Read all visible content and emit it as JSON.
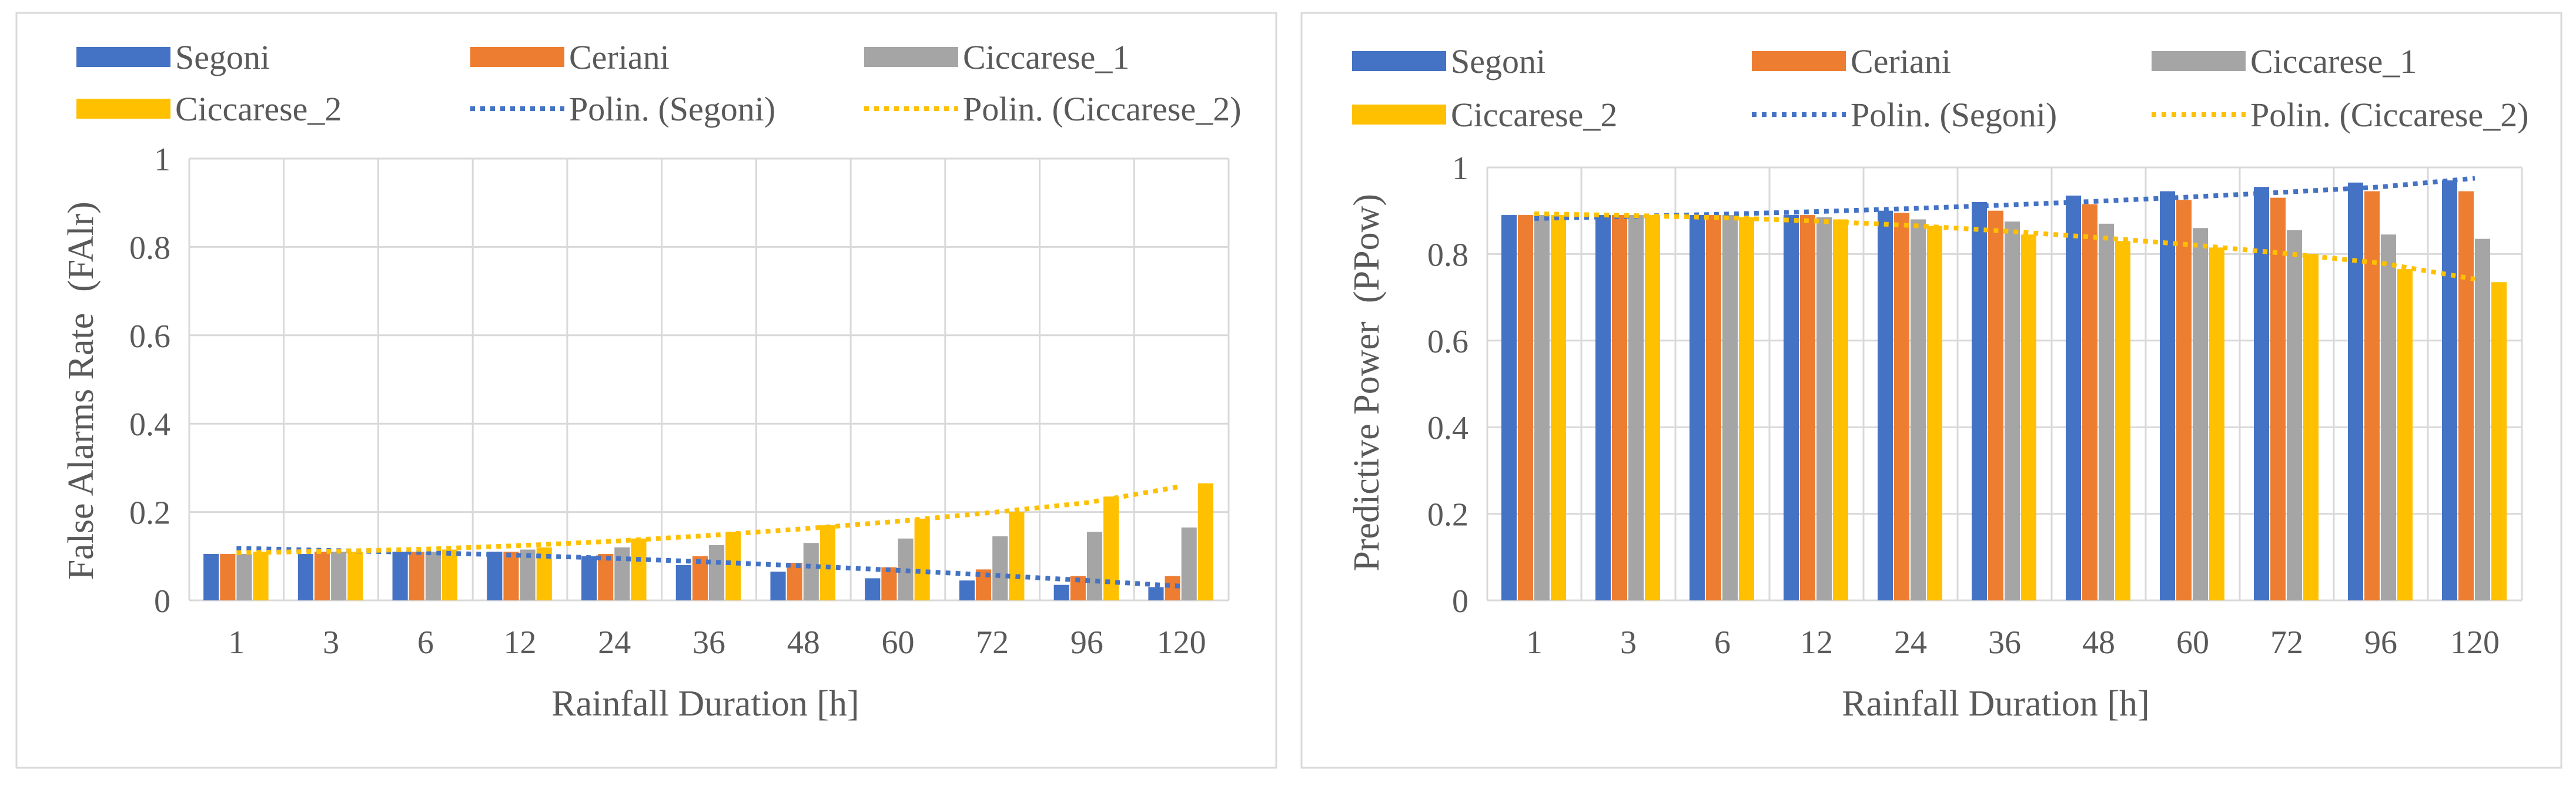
{
  "chart_data": [
    {
      "type": "bar",
      "xlabel": "Rainfall Duration [h]",
      "ylabel": "False Alarms Rate",
      "ylabel_abbrev": "(FAlr)",
      "ylim": [
        0,
        1
      ],
      "yticks": [
        0,
        0.2,
        0.4,
        0.6,
        0.8,
        1
      ],
      "ytick_labels": [
        "0",
        "0.2",
        "0.4",
        "0.6",
        "0.8",
        "1"
      ],
      "grid": true,
      "legend_position": "top",
      "categories": [
        "1",
        "3",
        "6",
        "12",
        "24",
        "36",
        "48",
        "60",
        "72",
        "96",
        "120"
      ],
      "series": [
        {
          "name": "Segoni",
          "color": "#4472C4",
          "values": [
            0.105,
            0.105,
            0.11,
            0.11,
            0.1,
            0.08,
            0.065,
            0.05,
            0.045,
            0.035,
            0.03
          ]
        },
        {
          "name": "Ceriani",
          "color": "#ED7D31",
          "values": [
            0.105,
            0.11,
            0.11,
            0.11,
            0.105,
            0.1,
            0.085,
            0.075,
            0.07,
            0.055,
            0.055
          ]
        },
        {
          "name": "Ciccarese_1",
          "color": "#A5A5A5",
          "values": [
            0.105,
            0.11,
            0.11,
            0.115,
            0.12,
            0.125,
            0.13,
            0.14,
            0.145,
            0.155,
            0.165
          ]
        },
        {
          "name": "Ciccarese_2",
          "color": "#FFC000",
          "values": [
            0.11,
            0.11,
            0.115,
            0.12,
            0.14,
            0.155,
            0.17,
            0.185,
            0.2,
            0.235,
            0.265
          ]
        }
      ],
      "trendlines": [
        {
          "name": "Polin. (Segoni)",
          "color": "#4472C4",
          "values": [
            0.118,
            0.113,
            0.108,
            0.102,
            0.095,
            0.087,
            0.078,
            0.068,
            0.057,
            0.045,
            0.032
          ]
        },
        {
          "name": "Polin. (Ciccarese_2)",
          "color": "#FFC000",
          "values": [
            0.108,
            0.111,
            0.116,
            0.124,
            0.134,
            0.147,
            0.162,
            0.179,
            0.199,
            0.221,
            0.258
          ]
        }
      ]
    },
    {
      "type": "bar",
      "xlabel": "Rainfall Duration [h]",
      "ylabel": "Predictive Power",
      "ylabel_abbrev": "(PPow)",
      "ylim": [
        0,
        1
      ],
      "yticks": [
        0,
        0.2,
        0.4,
        0.6,
        0.8,
        1
      ],
      "ytick_labels": [
        "0",
        "0.2",
        "0.4",
        "0.6",
        "0.8",
        "1"
      ],
      "grid": true,
      "legend_position": "top",
      "categories": [
        "1",
        "3",
        "6",
        "12",
        "24",
        "36",
        "48",
        "60",
        "72",
        "96",
        "120"
      ],
      "series": [
        {
          "name": "Segoni",
          "color": "#4472C4",
          "values": [
            0.89,
            0.89,
            0.89,
            0.89,
            0.9,
            0.92,
            0.935,
            0.945,
            0.955,
            0.965,
            0.97
          ]
        },
        {
          "name": "Ceriani",
          "color": "#ED7D31",
          "values": [
            0.89,
            0.89,
            0.89,
            0.89,
            0.895,
            0.9,
            0.915,
            0.925,
            0.93,
            0.945,
            0.945
          ]
        },
        {
          "name": "Ciccarese_1",
          "color": "#A5A5A5",
          "values": [
            0.89,
            0.89,
            0.89,
            0.885,
            0.88,
            0.875,
            0.87,
            0.86,
            0.855,
            0.845,
            0.835
          ]
        },
        {
          "name": "Ciccarese_2",
          "color": "#FFC000",
          "values": [
            0.89,
            0.89,
            0.885,
            0.88,
            0.865,
            0.845,
            0.83,
            0.815,
            0.8,
            0.765,
            0.735
          ]
        }
      ],
      "trendlines": [
        {
          "name": "Polin. (Segoni)",
          "color": "#4472C4",
          "values": [
            0.882,
            0.887,
            0.892,
            0.898,
            0.905,
            0.913,
            0.922,
            0.932,
            0.943,
            0.955,
            0.975
          ]
        },
        {
          "name": "Polin. (Ciccarese_2)",
          "color": "#FFC000",
          "values": [
            0.893,
            0.889,
            0.884,
            0.876,
            0.866,
            0.853,
            0.838,
            0.821,
            0.801,
            0.779,
            0.742
          ]
        }
      ]
    }
  ]
}
